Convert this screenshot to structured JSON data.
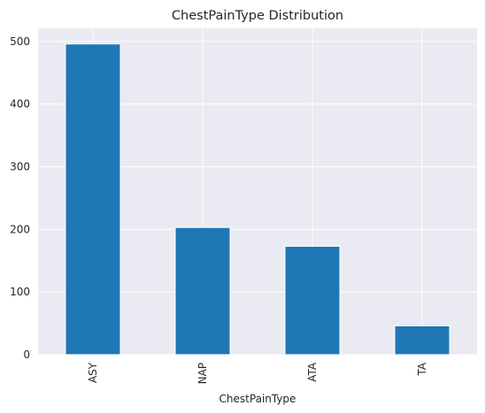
{
  "chart_data": {
    "type": "bar",
    "title": "ChestPainType Distribution",
    "xlabel": "ChestPainType",
    "ylabel": "",
    "categories": [
      "ASY",
      "NAP",
      "ATA",
      "TA"
    ],
    "values": [
      496,
      203,
      173,
      46
    ],
    "ylim": [
      0,
      521
    ],
    "yticks": [
      0,
      100,
      200,
      300,
      400,
      500
    ],
    "grid": true,
    "bar_color": "#1f77b4",
    "background_color": "#eaeaf2",
    "grid_color": "#ffffff",
    "legend": "none"
  }
}
